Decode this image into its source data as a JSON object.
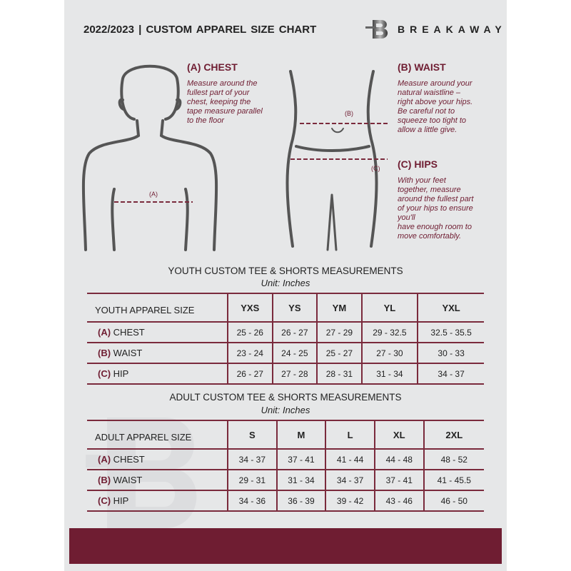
{
  "header": {
    "title": "2022/2023  |  CUSTOM APPAREL SIZE CHART",
    "brand": "BREAKAWAY",
    "logo_letter": "B"
  },
  "measures": {
    "chest": {
      "heading": "(A) CHEST",
      "text": [
        "Measure around the",
        "fullest part of your",
        "chest, keeping the",
        "tape measure parallel",
        "to the floor"
      ],
      "marker": "(A)"
    },
    "waist": {
      "heading": "(B) WAIST",
      "text": [
        "Measure around your",
        "natural waistline –",
        "right above your hips.",
        "Be careful not to",
        "squeeze too tight to",
        "allow a little give."
      ],
      "marker": "(B)"
    },
    "hips": {
      "heading": "(C) HIPS",
      "text": [
        "With your feet",
        "together, measure",
        "around the fullest part",
        "of your hips to ensure",
        "you'll",
        "have enough room to",
        "move comfortably."
      ],
      "marker": "(C)"
    }
  },
  "youth": {
    "title": "YOUTH CUSTOM TEE & SHORTS MEASUREMENTS",
    "unit": "Unit: Inches",
    "header": [
      "YOUTH APPAREL SIZE",
      "YXS",
      "YS",
      "YM",
      "YL",
      "YXL"
    ],
    "rows": [
      {
        "letter": "(A)",
        "label": "CHEST",
        "values": [
          "25 - 26",
          "26 - 27",
          "27 - 29",
          "29 - 32.5",
          "32.5 - 35.5"
        ]
      },
      {
        "letter": "(B)",
        "label": "WAIST",
        "values": [
          "23 - 24",
          "24 - 25",
          "25 - 27",
          "27 - 30",
          "30 - 33"
        ]
      },
      {
        "letter": "(C)",
        "label": "HIP",
        "values": [
          "26 - 27",
          "27 - 28",
          "28 - 31",
          "31 - 34",
          "34 - 37"
        ]
      }
    ]
  },
  "adult": {
    "title": "ADULT CUSTOM TEE & SHORTS MEASUREMENTS",
    "unit": "Unit: Inches",
    "header": [
      "ADULT APPAREL SIZE",
      "S",
      "M",
      "L",
      "XL",
      "2XL"
    ],
    "rows": [
      {
        "letter": "(A)",
        "label": "CHEST",
        "values": [
          "34 - 37",
          "37 - 41",
          "41 - 44",
          "44 - 48",
          "48 - 52"
        ]
      },
      {
        "letter": "(B)",
        "label": "WAIST",
        "values": [
          "29 - 31",
          "31 - 34",
          "34 - 37",
          "37 - 41",
          "41 - 45.5"
        ]
      },
      {
        "letter": "(C)",
        "label": "HIP",
        "values": [
          "34 - 36",
          "36 - 39",
          "39 - 42",
          "43 - 46",
          "46 - 50"
        ]
      }
    ]
  },
  "colors": {
    "accent": "#6f1d32",
    "panel": "#e6e7e8"
  }
}
